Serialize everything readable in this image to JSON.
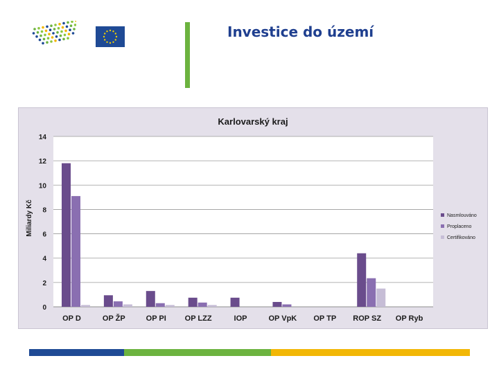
{
  "slide": {
    "title": "Investice do území"
  },
  "icons": {
    "left_logo": "dot-grid-logo",
    "eu_logo": "eu-flag-icon"
  },
  "colors": {
    "title": "#1f3f8f",
    "accent_green": "#6cb33f",
    "footer_blue": "#1f4a95",
    "footer_yellow": "#f2b705"
  },
  "chart_data": {
    "type": "bar",
    "title": "Karlovarský kraj",
    "xlabel": "",
    "ylabel": "Miliardy Kč",
    "ylim": [
      0,
      14
    ],
    "yticks": [
      0,
      2,
      4,
      6,
      8,
      10,
      12,
      14
    ],
    "grid": true,
    "legend_position": "right",
    "categories": [
      "OP D",
      "OP ŽP",
      "OP PI",
      "OP LZZ",
      "IOP",
      "OP VpK",
      "OP TP",
      "ROP SZ",
      "OP Ryb"
    ],
    "series": [
      {
        "name": "Nasmlouváno",
        "color": "#6a4c8c",
        "values": [
          11.8,
          0.95,
          1.3,
          0.75,
          0.75,
          0.4,
          0,
          4.4,
          0
        ]
      },
      {
        "name": "Proplaceno",
        "color": "#8a6fb1",
        "values": [
          9.1,
          0.45,
          0.3,
          0.35,
          0,
          0.2,
          0,
          2.35,
          0
        ]
      },
      {
        "name": "Certifikováno",
        "color": "#c6bdd6",
        "values": [
          0.15,
          0.2,
          0.15,
          0.15,
          0,
          0,
          0,
          1.5,
          0
        ]
      }
    ]
  }
}
